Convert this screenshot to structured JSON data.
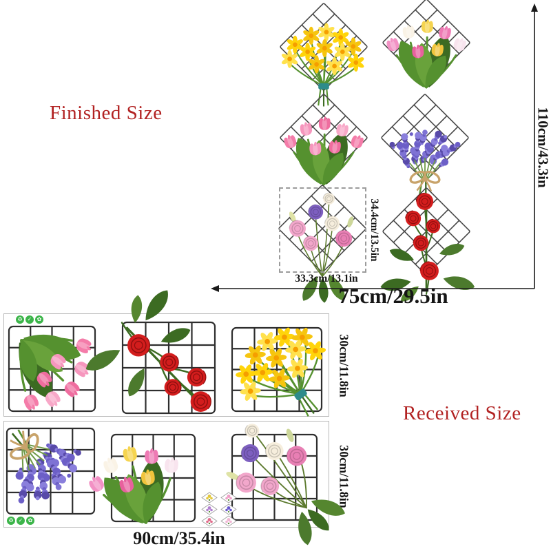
{
  "labels": {
    "finished_size": "Finished Size",
    "received_size": "Received Size"
  },
  "dimensions": {
    "total_height": "110cm/43.3in",
    "total_width": "75cm/29.5in",
    "panel_width": "33.3cm/13.1in",
    "panel_height": "34.4cm/13.5in",
    "sheet_width": "90cm/35.4in"
  },
  "colors": {
    "accent_red": "#b22222",
    "dimension_text": "#151515",
    "diamond_grid_line": "#474747",
    "sheet_grid_line": "#2e2e2e",
    "sheet_border": "#b9b9b9",
    "dotted_outline": "#9b9b9b",
    "eco_green": "#3cb54a",
    "stem_green": "#55912f",
    "dark_green": "#3c6b22",
    "twine_tan": "#c8a36a",
    "tie_teal": "#2e8b8b"
  },
  "finished_panels": [
    {
      "name": "daffodil-bouquet",
      "flower": "daffodil",
      "petal_colors": [
        "#ffd40a",
        "#f6c50f",
        "#ffe14d"
      ]
    },
    {
      "name": "mixed-tulip-bouquet",
      "flower": "tulip",
      "petal_colors": [
        "#f291c4",
        "#faf3e6",
        "#f5d44f",
        "#ee7ab4",
        "#f8e4ee",
        "#e8619e",
        "#f0c43c"
      ]
    },
    {
      "name": "pink-tulip-bouquet",
      "flower": "tulip",
      "petal_colors": [
        "#f47ca9",
        "#f696bd",
        "#ef6d9f",
        "#f8a8c8"
      ]
    },
    {
      "name": "lavender-bouquet",
      "flower": "lavender",
      "petal_colors": [
        "#6c5fc7",
        "#7e72d4",
        "#584aa9",
        "#8a7fdc"
      ]
    },
    {
      "name": "lisianthus-bouquet",
      "flower": "lisianthus",
      "petal_colors": [
        "#f2a7cb",
        "#7d5fc0",
        "#f6eedd",
        "#e87fb4"
      ]
    },
    {
      "name": "red-rose-bouquet",
      "flower": "rose",
      "petal_colors": [
        "#d31d1d",
        "#e44040",
        "#8f0f0f"
      ]
    }
  ],
  "sheets": [
    {
      "name": "sticker-sheet-1",
      "height_label": "30cm/11.8in",
      "panel_refs": [
        2,
        5,
        0
      ],
      "eco_badges": [
        "recycle-icon",
        "eco-circle-icon",
        "leaf-circle-icon"
      ]
    },
    {
      "name": "sticker-sheet-2",
      "height_label": "30cm/11.8in",
      "panel_refs": [
        3,
        1,
        4
      ],
      "eco_badges": [
        "recycle-icon",
        "eco-circle-icon",
        "leaf-circle-icon"
      ],
      "mini_preview_colors": [
        "#e3c83b",
        "#ef9ec6",
        "#b07fd0",
        "#6a5acd",
        "#e06a8a",
        "#f0b6d4"
      ]
    }
  ]
}
